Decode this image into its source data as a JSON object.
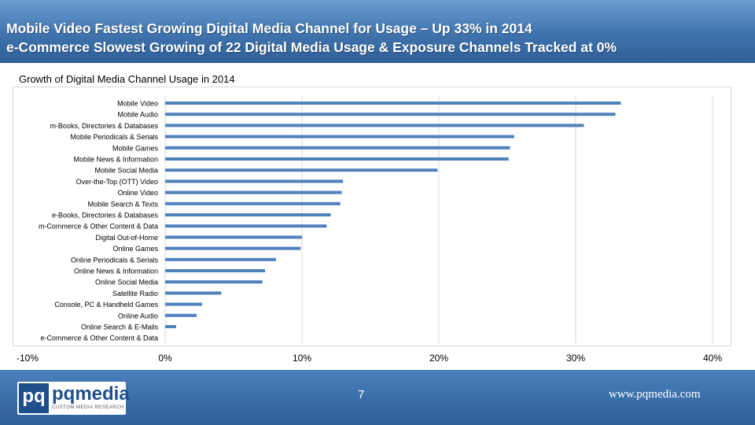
{
  "header": {
    "line1": "Mobile Video Fastest Growing Digital Media Channel for Usage – Up 33% in 2014",
    "line2": "e-Commerce Slowest Growing of 22 Digital Media Usage & Exposure Channels Tracked at 0%"
  },
  "colors": {
    "header_bg": "#3f73ad",
    "bar": "#4f81bd",
    "grid": "#d9d9d9",
    "footer_bg": "#2e5f99"
  },
  "chart_data": {
    "type": "bar",
    "orientation": "horizontal",
    "title": "Growth of Digital Media Channel Usage in 2014",
    "categories": [
      "Mobile Video",
      "Mobile Audio",
      "m-Books, Directories & Databases",
      "Mobile Periodicals & Serials",
      "Mobile Games",
      "Mobile News & Information",
      "Mobile Social Media",
      "Over-the-Top (OTT) Video",
      "Online Video",
      "Mobile Search & Texts",
      "e-Books, Directories & Databases",
      "m-Commerce & Other Content & Data",
      "Digital Out-of-Home",
      "Online Games",
      "Online Periodicals & Serials",
      "Online News & Information",
      "Online Social Media",
      "Satellite Radio",
      "Console, PC & Handheld Games",
      "Online Audio",
      "Online Search & E-Mails",
      "e-Commerce & Other Content & Data"
    ],
    "values": [
      33.3,
      32.9,
      30.6,
      25.5,
      25.2,
      25.1,
      19.9,
      13.0,
      12.9,
      12.8,
      12.1,
      11.8,
      10.0,
      9.9,
      8.1,
      7.3,
      7.1,
      4.1,
      2.7,
      2.3,
      0.8,
      0.0
    ],
    "xlim": [
      -10,
      40
    ],
    "xticks": [
      "-10%",
      "0%",
      "10%",
      "20%",
      "30%",
      "40%"
    ],
    "grid": true,
    "legend": "none"
  },
  "footer": {
    "logo_mark": "pq",
    "logo_brand": "pqmedia",
    "logo_tagline": "CUSTOM MEDIA RESEARCH",
    "page_number": "7",
    "website": "www.pqmedia.com"
  }
}
